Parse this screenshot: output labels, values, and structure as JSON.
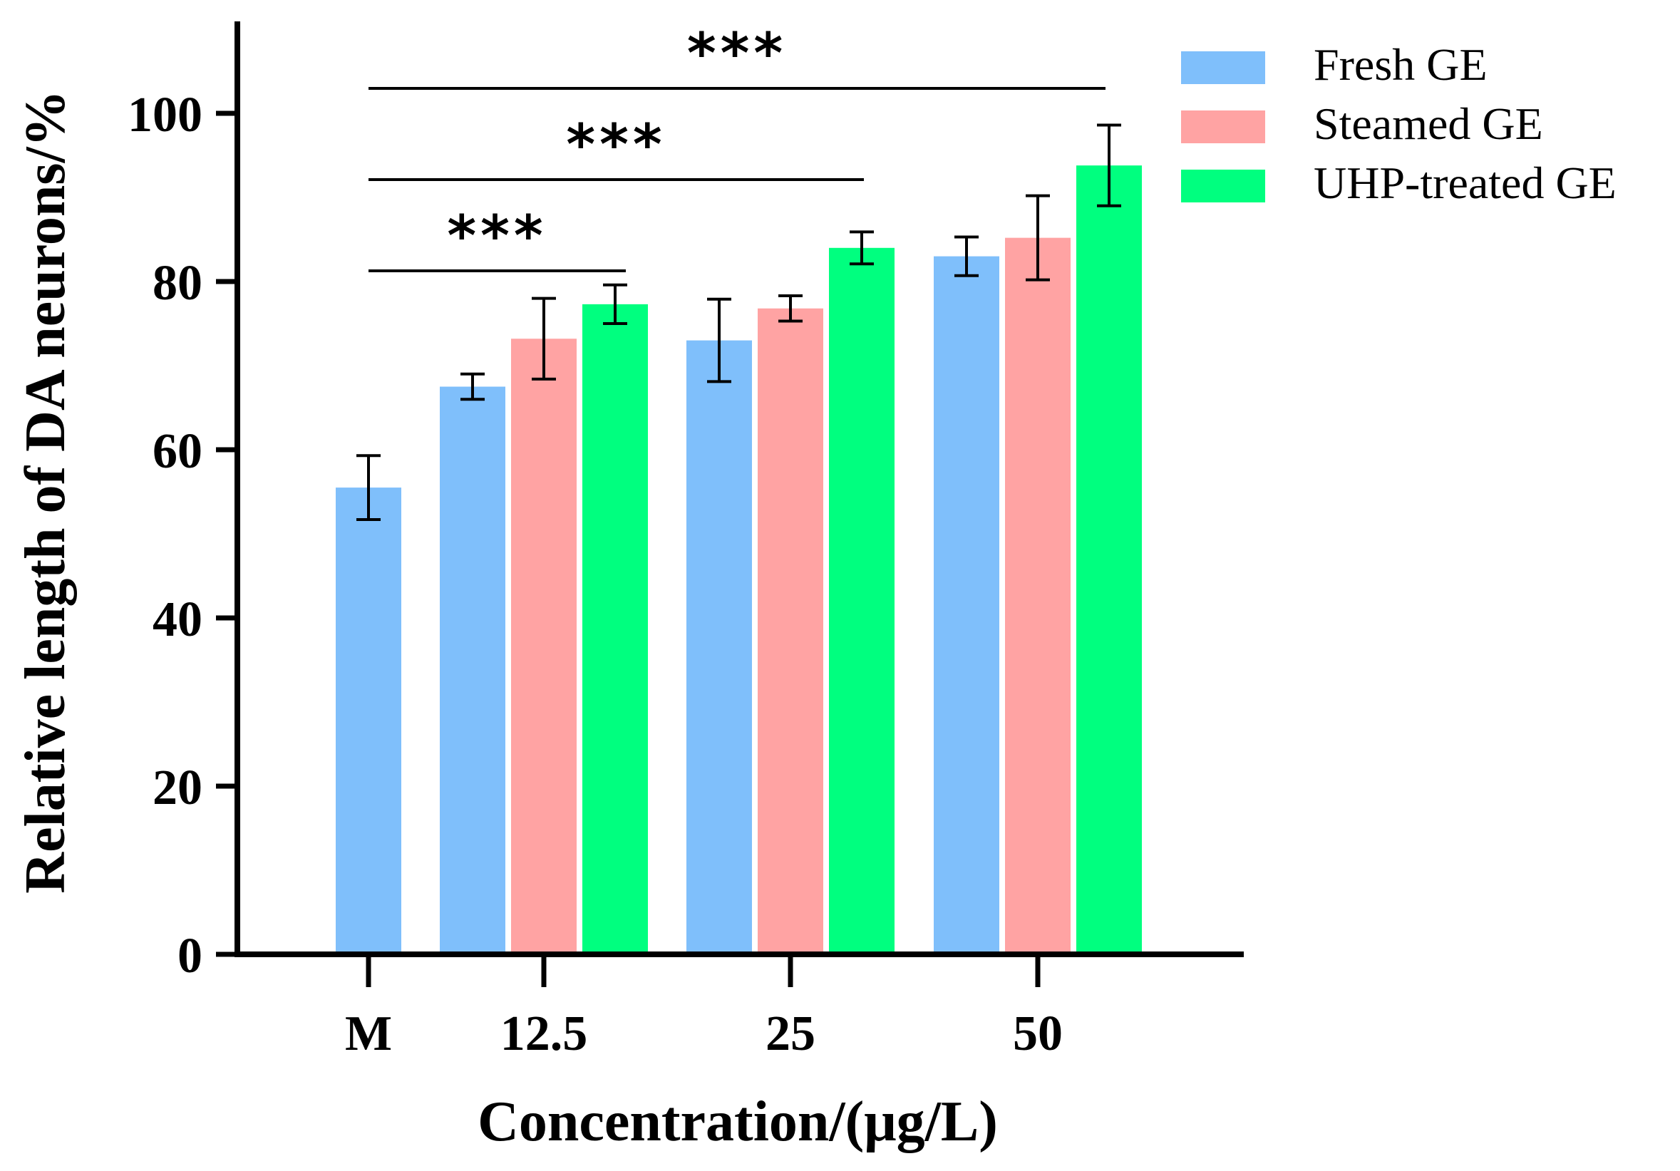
{
  "chart_data": {
    "type": "bar",
    "title": "",
    "xlabel": "Concentration/(μg/L)",
    "ylabel": "Relative length of DA neurons/%",
    "ylim": [
      0,
      110
    ],
    "yticks": [
      0,
      20,
      40,
      60,
      80,
      100
    ],
    "ytick_labels": [
      "0",
      "20",
      "40",
      "60",
      "80",
      "100"
    ],
    "categories": [
      "M",
      "12.5",
      "25",
      "50"
    ],
    "series": [
      {
        "name": "Fresh GE",
        "color": "#7fbffb",
        "values": [
          55.5,
          67.5,
          73.0,
          83.0
        ],
        "errors": [
          3.8,
          1.5,
          4.9,
          2.3
        ]
      },
      {
        "name": "Steamed GE",
        "color": "#ffa3a3",
        "values": [
          null,
          73.2,
          76.8,
          85.2
        ],
        "errors": [
          null,
          4.8,
          1.5,
          5.0
        ]
      },
      {
        "name": "UHP-treated GE",
        "color": "#00ff7f",
        "values": [
          null,
          77.3,
          84.0,
          93.8
        ],
        "errors": [
          null,
          2.3,
          1.9,
          4.8
        ]
      }
    ],
    "significance": [
      {
        "from": "M",
        "to": "12.5 UHP-treated GE",
        "label": "***"
      },
      {
        "from": "M",
        "to": "25 UHP-treated GE",
        "label": "***"
      },
      {
        "from": "M",
        "to": "50 UHP-treated GE",
        "label": "***"
      }
    ],
    "legend_position": "top-right",
    "grid": false
  }
}
